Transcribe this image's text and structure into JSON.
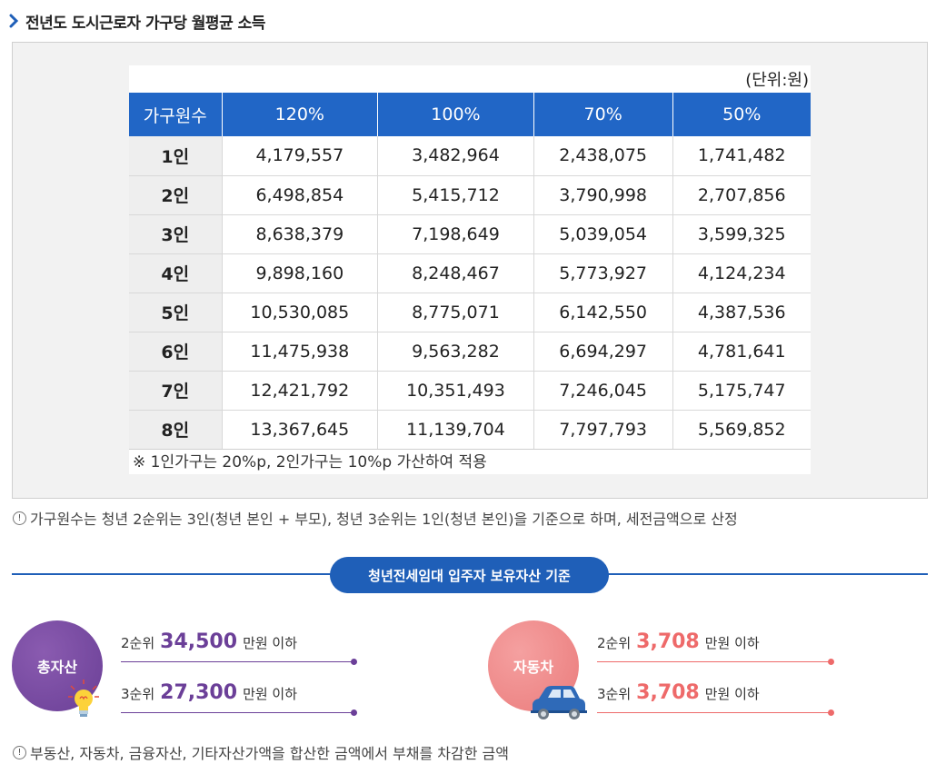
{
  "title": "전년도 도시근로자 가구당 월평균 소득",
  "unit": "(단위:원)",
  "table": {
    "headers": [
      "가구원수",
      "120%",
      "100%",
      "70%",
      "50%"
    ],
    "rows": [
      [
        "1인",
        "4,179,557",
        "3,482,964",
        "2,438,075",
        "1,741,482"
      ],
      [
        "2인",
        "6,498,854",
        "5,415,712",
        "3,790,998",
        "2,707,856"
      ],
      [
        "3인",
        "8,638,379",
        "7,198,649",
        "5,039,054",
        "3,599,325"
      ],
      [
        "4인",
        "9,898,160",
        "8,248,467",
        "5,773,927",
        "4,124,234"
      ],
      [
        "5인",
        "10,530,085",
        "8,775,071",
        "6,142,550",
        "4,387,536"
      ],
      [
        "6인",
        "11,475,938",
        "9,563,282",
        "6,694,297",
        "4,781,641"
      ],
      [
        "7인",
        "12,421,792",
        "10,351,493",
        "7,246,045",
        "5,175,747"
      ],
      [
        "8인",
        "13,367,645",
        "11,139,704",
        "7,797,793",
        "5,569,852"
      ]
    ]
  },
  "table_footnote": "※ 1인가구는 20%p, 2인가구는 10%p 가산하여 적용",
  "note1": "가구원수는 청년 2순위는 3인(청년 본인 + 부모), 청년 3순위는 1인(청년 본인)을 기준으로 하며, 세전금액으로 산정",
  "asset_section_title": "청년전세임대 입주자 보유자산 기준",
  "total_asset": {
    "label": "총자산",
    "rank2": {
      "prefix": "2순위",
      "amount": "34,500",
      "suffix": "만원 이하"
    },
    "rank3": {
      "prefix": "3순위",
      "amount": "27,300",
      "suffix": "만원 이하"
    }
  },
  "car": {
    "label": "자동차",
    "rank2": {
      "prefix": "2순위",
      "amount": "3,708",
      "suffix": "만원 이하"
    },
    "rank3": {
      "prefix": "3순위",
      "amount": "3,708",
      "suffix": "만원 이하"
    }
  },
  "note2": "부동산, 자동차, 금융자산, 기타자산가액을 합산한 금액에서 부채를 차감한 금액",
  "note_icon": "!",
  "colors": {
    "header_blue": "#2166c6",
    "purple": "#6b3f98",
    "coral": "#ee6a6a"
  },
  "icons": [
    "chevron-right-icon",
    "info-circle-icon",
    "lightbulb-icon",
    "car-icon"
  ]
}
